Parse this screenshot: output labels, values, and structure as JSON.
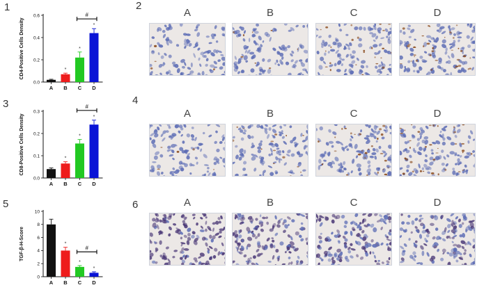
{
  "panels": {
    "p1": {
      "number": "1"
    },
    "p2": {
      "number": "2"
    },
    "p3": {
      "number": "3"
    },
    "p4": {
      "number": "4"
    },
    "p5": {
      "number": "5"
    },
    "p6": {
      "number": "6"
    }
  },
  "column_labels": [
    "A",
    "B",
    "C",
    "D"
  ],
  "chart_data": [
    {
      "type": "bar",
      "panel": "1",
      "ylabel": "CD4-Positive Cells Density",
      "categories": [
        "A",
        "B",
        "C",
        "D"
      ],
      "values": [
        0.02,
        0.07,
        0.22,
        0.44
      ],
      "errors": [
        0.005,
        0.01,
        0.05,
        0.04
      ],
      "colors": [
        "#111111",
        "#ee1c1c",
        "#22c922",
        "#0a14d6"
      ],
      "yticks": [
        0.0,
        0.2,
        0.4,
        0.6
      ],
      "ytick_labels": [
        "0.0",
        "0.2",
        "0.4",
        "0.6"
      ],
      "ylim": [
        0,
        0.6
      ],
      "significance_stars": [
        "",
        "*",
        "*",
        "*"
      ],
      "bracket": {
        "from": "C",
        "to": "D",
        "label": "#"
      }
    },
    {
      "type": "bar",
      "panel": "3",
      "ylabel": "CD8-Positive Cells Density",
      "categories": [
        "A",
        "B",
        "C",
        "D"
      ],
      "values": [
        0.04,
        0.065,
        0.155,
        0.24
      ],
      "errors": [
        0.005,
        0.008,
        0.018,
        0.02
      ],
      "colors": [
        "#111111",
        "#ee1c1c",
        "#22c922",
        "#0a14d6"
      ],
      "yticks": [
        0.0,
        0.1,
        0.2,
        0.3
      ],
      "ytick_labels": [
        "0.0",
        "0.1",
        "0.2",
        "0.3"
      ],
      "ylim": [
        0,
        0.3
      ],
      "significance_stars": [
        "",
        "*",
        "*",
        "*"
      ],
      "bracket": {
        "from": "C",
        "to": "D",
        "label": "#"
      }
    },
    {
      "type": "bar",
      "panel": "5",
      "ylabel": "TGF-β-H-Score",
      "categories": [
        "A",
        "B",
        "C",
        "D"
      ],
      "values": [
        8.0,
        4.0,
        1.5,
        0.6
      ],
      "errors": [
        0.8,
        0.5,
        0.2,
        0.15
      ],
      "colors": [
        "#111111",
        "#ee1c1c",
        "#22c922",
        "#0a14d6"
      ],
      "yticks": [
        0,
        2,
        4,
        6,
        8,
        10
      ],
      "ytick_labels": [
        "0",
        "2",
        "4",
        "6",
        "8",
        "10"
      ],
      "ylim": [
        0,
        10
      ],
      "significance_stars": [
        "",
        "*",
        "*",
        "*"
      ],
      "bracket": {
        "from": "C",
        "to": "D",
        "label": "#"
      }
    }
  ],
  "micrographs": {
    "row2": {
      "stain_density": [
        0.05,
        0.12,
        0.35,
        0.55
      ]
    },
    "row4": {
      "stain_density": [
        0.08,
        0.2,
        0.4,
        0.5
      ]
    },
    "row6": {
      "stain_density": [
        0.9,
        0.6,
        0.45,
        0.3
      ]
    }
  },
  "colors": {
    "tissue_bg": "#ece8e6",
    "nucleus": "#5d6db5",
    "brown_stain": "#8a4a1c",
    "dark_purple": "#4c3a78"
  }
}
